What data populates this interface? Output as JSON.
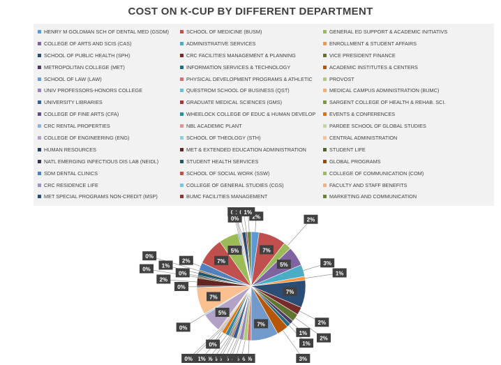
{
  "chart_data": {
    "type": "pie",
    "title": "COST ON K-CUP BY DIFFERENT DEPARTMENT",
    "legend_position": "top",
    "categories": [
      "HENRY M GOLDMAN SCH OF DENTAL MED (GSDM)",
      "SCHOOL OF MEDICINE (BUSM)",
      "GENERAL ED SUPPORT & ACADEMIC INITIATIVS",
      "COLLEGE OF ARTS AND SCIS (CAS)",
      "ADMINISTRATIVE SERVICES",
      "ENROLLMENT & STUDENT AFFAIRS",
      "SCHOOL OF PUBLIC HEALTH (SPH)",
      "CRC FACILITIES MANAGEMENT & PLANNING",
      "VICE PRESIDENT FINANCE",
      "METROPOLITAN COLLEGE (MET)",
      "INFORMATION SERVICES & TECHNOLOGY",
      "ACADEMIC INSTITUTES & CENTERS",
      "SCHOOL OF LAW (LAW)",
      "PHYSICAL DEVELOPMENT PROGRAMS & ATHLETIC",
      "PROVOST",
      "UNIV PROFESSORS-HONORS COLLEGE",
      "QUESTROM SCHOOL OF BUSINESS (QST)",
      "MEDICAL CAMPUS ADMINISTRATION (BUMC)",
      "UNIVERSITY LIBRARIES",
      "GRADUATE MEDICAL SCIENCES (GMS)",
      "SARGENT COLLEGE OF HEALTH & REHAB. SCI.",
      "COLLEGE OF FINE ARTS (CFA)",
      "WHEELOCK COLLEGE OF EDUC & HUMAN DEVELOP",
      "EVENTS & CONFERENCES",
      "CRC RENTAL PROPERTIES",
      "NBL ACADEMIC PLANT",
      "PARDEE SCHOOL OF GLOBAL STUDIES",
      "COLLEGE OF ENGINEERING (ENG)",
      "SCHOOL OF THEOLOGY (STH)",
      "CENTRAL ADMINISTRATION",
      "HUMAN RESOURCES",
      "MET & EXTENDED EDUCATION ADMINISTRATION",
      "STUDENT LIFE",
      "NATL EMERGING INFECTIOUS DIS LAB (NEIDL)",
      "STUDENT HEALTH SERVICES",
      "GLOBAL PROGRAMS",
      "SDM DENTAL CLINICS",
      "SCHOOL OF SOCIAL WORK (SSW)",
      "COLLEGE OF COMMUNICATION (COM)",
      "CRC RESIDENCE LIFE",
      "COLLEGE OF GENERAL STUDIES (CGS)",
      "FACULTY AND STAFF BENEFITS",
      "MET SPECIAL PROGRAMS NON-CREDIT (MSP)",
      "BUMC FACILITIES MANAGEMENT",
      "MARKETING AND COMMUNICATION"
    ],
    "slice_order": [
      0,
      1,
      2,
      3,
      4,
      5,
      6,
      7,
      8,
      9,
      10,
      11,
      12,
      13,
      14,
      15,
      16,
      17,
      18,
      19,
      20,
      21,
      22,
      23,
      24,
      25,
      26,
      27,
      28,
      29,
      30,
      31,
      32,
      33,
      34,
      35,
      36,
      37,
      38,
      39,
      40,
      41,
      42,
      43,
      44
    ],
    "values": [
      2,
      7,
      2,
      5,
      3,
      1,
      7,
      2,
      2,
      1,
      1,
      3,
      7,
      1,
      1,
      1,
      0,
      0,
      1,
      0,
      0,
      0,
      1,
      1,
      0,
      0,
      0,
      5,
      0,
      7,
      0,
      2,
      0,
      0,
      1,
      0,
      2,
      7,
      5,
      0,
      0,
      0,
      1,
      0,
      1
    ],
    "data_labels": [
      "2%",
      "7%",
      "2%",
      "5%",
      "3%",
      "1%",
      "7%",
      "2%",
      "2%",
      "1%",
      "1%",
      "3%",
      "7%",
      "1%",
      "1%",
      "1%",
      "0%",
      "0%",
      "1%",
      "0%",
      "0%",
      "0%",
      "1%",
      "1%",
      "0%",
      "0%",
      "0%",
      "5%",
      "0%",
      "7%",
      "0%",
      "2%",
      "0%",
      "0%",
      "1%",
      "0%",
      "2%",
      "7%",
      "5%",
      "0%",
      "0%",
      "0%",
      "1%",
      "0%",
      "1%"
    ],
    "colors": [
      "#5b9bd5",
      "#c0504d",
      "#9bbb59",
      "#8064a2",
      "#4bacc6",
      "#f79646",
      "#2c4d75",
      "#772c2a",
      "#5f7530",
      "#4d3b62",
      "#276a7c",
      "#b65708",
      "#729aca",
      "#cd7371",
      "#afc97a",
      "#9983b5",
      "#6fbdd1",
      "#f9ab6b",
      "#3a5f8e",
      "#9a3b38",
      "#7a963e",
      "#654f81",
      "#328aa1",
      "#e0720c",
      "#95b3d7",
      "#d9979b",
      "#c3d69b",
      "#b3a2c7",
      "#93cddd",
      "#fac090",
      "#243f60",
      "#632523",
      "#4f6228",
      "#3f3151",
      "#215968",
      "#974806",
      "#4f81bd",
      "#c0504d",
      "#9bbb59",
      "#a092c0",
      "#7fc5d6",
      "#f4b183",
      "#2c4d75",
      "#8c3836",
      "#6a8535"
    ]
  }
}
